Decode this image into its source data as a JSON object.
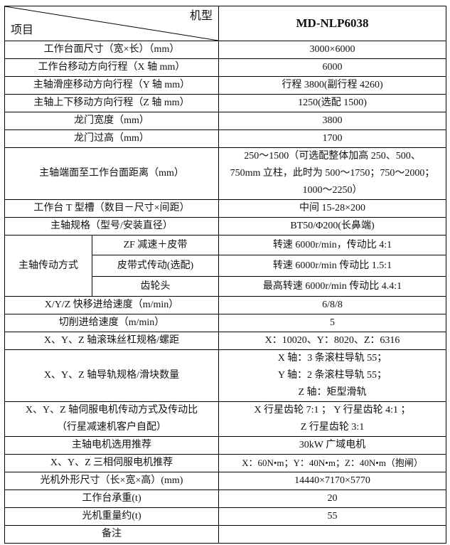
{
  "header": {
    "corner_top": "机型",
    "corner_bottom": "项目",
    "model": "MD-NLP6038"
  },
  "rows": [
    {
      "label": "工作台面尺寸（宽×长）（mm）",
      "value": "3000×6000"
    },
    {
      "label": "工作台移动方向行程（X 轴 mm）",
      "value": "6000"
    },
    {
      "label": "主轴滑座移动方向行程（Y 轴 mm）",
      "value": "行程 3800(副行程 4260)"
    },
    {
      "label": "主轴上下移动方向行程（Z 轴 mm）",
      "value": "1250(选配 1500)"
    },
    {
      "label": "龙门宽度（mm）",
      "value": "3800"
    },
    {
      "label": "龙门过高（mm）",
      "value": "1700"
    },
    {
      "label": "主轴端面至工作台面距离（mm）",
      "value_lines": [
        "250～1500（可选配整体加高 250、500、",
        "750mm 立柱，此时为 500～1750；750～2000；",
        "1000～2250）"
      ]
    },
    {
      "label": "工作台 T 型槽（数目－尺寸×间距）",
      "value": "中间 15-28×200"
    },
    {
      "label": "主轴规格（型号/安装直径）",
      "value": "BT50/Φ200(长鼻端)"
    }
  ],
  "drive": {
    "label": "主轴传动方式",
    "options": [
      {
        "label": "ZF 减速＋皮带",
        "value": "转速 6000r/min，传动比 4:1"
      },
      {
        "label": "皮带式传动(选配)",
        "value": "转速 6000r/min 传动比 1.5:1"
      },
      {
        "label": "齿轮头",
        "value": "最高转速 6000r/min 传动比 4.4:1"
      }
    ]
  },
  "rows2": [
    {
      "label": "X/Y/Z 快移进给速度（m/min）",
      "value": "6/8/8"
    },
    {
      "label": "切削进给速度（m/min）",
      "value": "5"
    },
    {
      "label": "X、Y、Z 轴滚珠丝杠规格/螺距",
      "value": "X：10020、Y：8020、Z：6316"
    },
    {
      "label": "X、Y、Z 轴导轨规格/滑块数量",
      "value_lines": [
        "X 轴：3 条滚柱导轨 55；",
        "Y 轴：2 条滚柱导轨 55；",
        "Z 轴：矩型滑轨"
      ]
    },
    {
      "label_lines": [
        "X、Y、Z 轴伺服电机传动方式及传动比",
        "（行星减速机客户自配）"
      ],
      "value_lines": [
        "X 行星齿轮 7:1 ；  Y 行星齿轮 4:1 ；",
        "Z 行星齿轮 3:1"
      ]
    },
    {
      "label": "主轴电机选用推荐",
      "value": "30kW 广域电机"
    },
    {
      "label": "X、Y、Z 三相伺服电机推荐",
      "value": "X：60N•m；Y：40N•m；Z：40N•m（抱闸）"
    },
    {
      "label": "光机外形尺寸（长×宽×高）(mm)",
      "value": "14440×7170×5770"
    },
    {
      "label": "工作台承重(t)",
      "value": "20"
    },
    {
      "label": "光机重量约(t)",
      "value": "55"
    },
    {
      "label": "备注",
      "value": ""
    }
  ]
}
